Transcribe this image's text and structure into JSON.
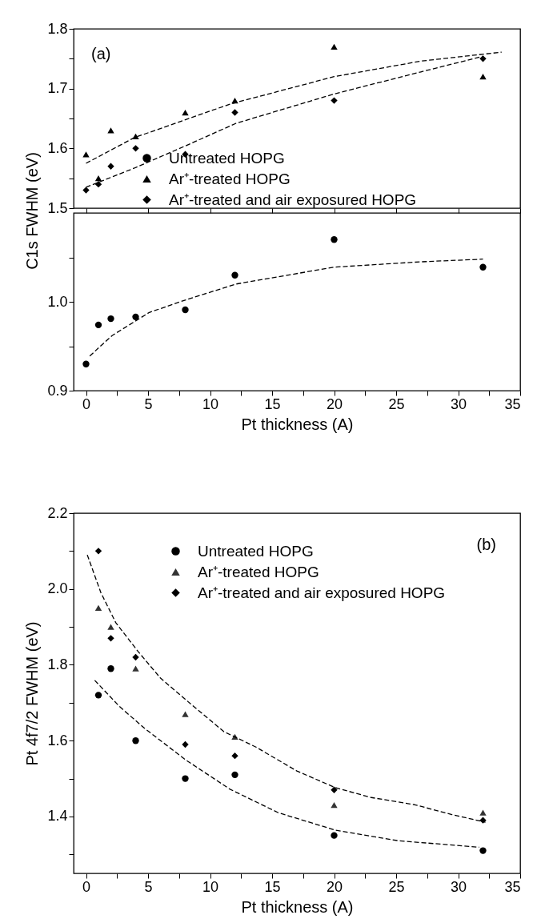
{
  "chart_data": [
    {
      "type": "scatter",
      "ylabel": "C1s FWHM (eV)",
      "annotations": [
        "(a)"
      ],
      "xlim": [
        -1,
        35
      ],
      "xticks": [
        0,
        5,
        10,
        15,
        20,
        25,
        30,
        35
      ],
      "ylim": [
        1.5,
        1.8
      ],
      "yticks": [
        1.5,
        {
          "value": 1.55,
          "label": null
        },
        1.6,
        {
          "value": 1.65,
          "label": null
        },
        1.7,
        {
          "value": 1.75,
          "label": null
        },
        1.8
      ],
      "tick_labels": "y",
      "grid": false,
      "legend": "bottom left",
      "series": [
        {
          "name": "Ar⁺-treated HOPG",
          "marker": "triangle",
          "color": "#000000",
          "x": [
            0,
            1,
            2,
            4,
            8,
            12,
            20,
            32
          ],
          "values": [
            1.59,
            1.55,
            1.63,
            1.62,
            1.66,
            1.68,
            1.77,
            1.72
          ]
        },
        {
          "name": "Ar⁺-treated and air exposured HOPG",
          "marker": "diamond",
          "color": "#000000",
          "x": [
            0,
            1,
            2,
            4,
            8,
            12,
            20,
            32
          ],
          "values": [
            1.53,
            1.54,
            1.57,
            1.6,
            1.59,
            1.66,
            1.68,
            1.75
          ]
        },
        {
          "type": "line",
          "line_style": "dashed",
          "color": "#000000",
          "x": [
            0,
            3.9,
            8,
            12.1,
            20,
            27,
            32
          ],
          "values": [
            1.535,
            1.567,
            1.604,
            1.642,
            1.691,
            1.728,
            1.754
          ]
        },
        {
          "type": "line",
          "line_style": "dashed",
          "color": "#000000",
          "x": [
            0,
            3.9,
            11.6,
            20,
            27,
            33.5
          ],
          "values": [
            1.575,
            1.618,
            1.674,
            1.72,
            1.746,
            1.761
          ]
        }
      ]
    },
    {
      "type": "scatter",
      "xlabel": "Pt thickness (A)",
      "xlim": [
        -1,
        35
      ],
      "xticks": [
        0,
        {
          "value": 2.5,
          "label": null
        },
        5,
        {
          "value": 7.5,
          "label": null
        },
        10,
        {
          "value": 12.5,
          "label": null
        },
        15,
        {
          "value": 17.5,
          "label": null
        },
        20,
        {
          "value": 22.5,
          "label": null
        },
        25,
        {
          "value": 27.5,
          "label": null
        },
        30,
        {
          "value": 32.5,
          "label": null
        },
        35
      ],
      "ylim": [
        0.9,
        1.1
      ],
      "yticks": [
        0.9,
        {
          "value": 0.95,
          "label": null
        },
        {
          "value": 1.0,
          "label": "1.0"
        },
        {
          "value": 1.05,
          "label": null
        }
      ],
      "grid": false,
      "legend": "top left",
      "series": [
        {
          "name": "Untreated HOPG",
          "marker": "circle",
          "color": "#000000",
          "x": [
            0,
            1,
            2,
            4,
            8,
            12,
            20,
            32
          ],
          "values": [
            0.93,
            0.974,
            0.981,
            0.983,
            0.991,
            1.03,
            1.07,
            1.039
          ]
        },
        {
          "type": "line",
          "line_style": "dashed",
          "color": "#000000",
          "x": [
            0.3,
            2.1,
            5.1,
            8,
            12.1,
            20,
            27,
            32
          ],
          "values": [
            0.939,
            0.962,
            0.988,
            1.002,
            1.02,
            1.039,
            1.045,
            1.048
          ]
        }
      ]
    },
    {
      "type": "scatter",
      "ylabel": "Pt 4f7/2 FWHM (eV)",
      "xlabel": "Pt thickness (A)",
      "annotations": [
        "(b)"
      ],
      "xlim": [
        -1,
        35
      ],
      "xticks": [
        0,
        {
          "value": 2.5,
          "label": null
        },
        5,
        {
          "value": 7.5,
          "label": null
        },
        10,
        {
          "value": 12.5,
          "label": null
        },
        15,
        {
          "value": 17.5,
          "label": null
        },
        20,
        {
          "value": 22.5,
          "label": null
        },
        25,
        {
          "value": 27.5,
          "label": null
        },
        30,
        {
          "value": 32.5,
          "label": null
        },
        35
      ],
      "ylim": [
        1.25,
        2.2
      ],
      "yticks": [
        {
          "value": 1.3,
          "label": null
        },
        1.4,
        {
          "value": 1.5,
          "label": null
        },
        1.6,
        {
          "value": 1.7,
          "label": null
        },
        1.8,
        {
          "value": 1.9,
          "label": null
        },
        {
          "value": 2.0,
          "label": "2.0"
        },
        {
          "value": 2.1,
          "label": null
        },
        2.2
      ],
      "grid": false,
      "legend": "top",
      "series": [
        {
          "name": "Untreated HOPG",
          "marker": "circle",
          "color": "#000000",
          "x": [
            1,
            2,
            4,
            8,
            12,
            20,
            32
          ],
          "values": [
            1.72,
            1.79,
            1.6,
            1.5,
            1.51,
            1.35,
            1.31
          ]
        },
        {
          "name": "Ar⁺-treated HOPG",
          "marker": "triangle",
          "color": "#333333",
          "x": [
            1,
            2,
            4,
            8,
            12,
            20,
            32
          ],
          "values": [
            1.95,
            1.9,
            1.79,
            1.67,
            1.61,
            1.43,
            1.41
          ]
        },
        {
          "name": "Ar⁺-treated and air exposured HOPG",
          "marker": "diamond",
          "color": "#000000",
          "x": [
            1,
            2,
            4,
            8,
            12,
            20,
            32
          ],
          "values": [
            2.1,
            1.87,
            1.82,
            1.59,
            1.56,
            1.47,
            1.39
          ]
        },
        {
          "type": "line",
          "line_style": "dashed",
          "color": "#000000",
          "x": [
            0.7,
            2.7,
            4.7,
            8,
            11.6,
            15.5,
            20.1,
            25.2,
            31.7
          ],
          "values": [
            1.759,
            1.69,
            1.633,
            1.55,
            1.472,
            1.41,
            1.364,
            1.336,
            1.319
          ]
        },
        {
          "type": "line",
          "line_style": "dashed",
          "color": "#000000",
          "x": [
            0.1,
            1.2,
            2.4,
            4.2,
            6,
            8,
            11.1,
            13.7,
            17,
            20.1,
            23,
            26.5,
            29.5,
            32.2
          ],
          "values": [
            2.09,
            1.99,
            1.911,
            1.835,
            1.765,
            1.709,
            1.624,
            1.583,
            1.52,
            1.476,
            1.45,
            1.431,
            1.405,
            1.385
          ]
        }
      ]
    }
  ]
}
